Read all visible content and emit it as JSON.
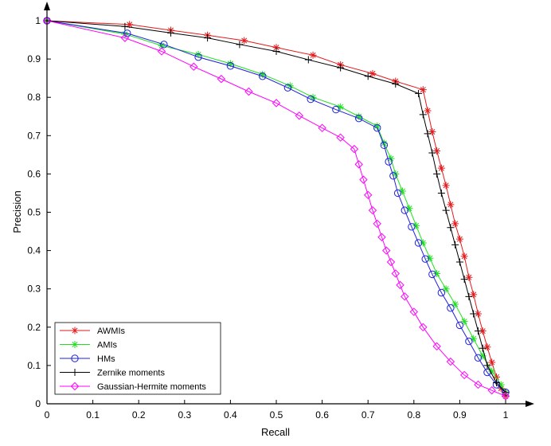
{
  "chart_data": {
    "type": "line",
    "title": "",
    "xlabel": "Recall",
    "ylabel": "Precision",
    "xlim": [
      0,
      1
    ],
    "ylim": [
      0,
      1
    ],
    "grid": false,
    "legend_position": "bottom-left",
    "xticks": [
      "0",
      "0.1",
      "0.2",
      "0.3",
      "0.4",
      "0.5",
      "0.6",
      "0.7",
      "0.8",
      "0.9",
      "1"
    ],
    "yticks": [
      "0",
      "0.1",
      "0.2",
      "0.3",
      "0.4",
      "0.5",
      "0.6",
      "0.7",
      "0.8",
      "0.9",
      "1"
    ],
    "series": [
      {
        "name": "AWMIs",
        "color": "#e31a1c",
        "marker": "asterisk",
        "x": [
          0,
          0.18,
          0.27,
          0.35,
          0.43,
          0.5,
          0.58,
          0.64,
          0.71,
          0.76,
          0.82,
          0.83,
          0.84,
          0.85,
          0.86,
          0.87,
          0.88,
          0.89,
          0.9,
          0.91,
          0.92,
          0.93,
          0.94,
          0.95,
          0.96,
          0.97,
          0.98,
          0.99,
          1.0
        ],
        "y": [
          1.0,
          0.99,
          0.975,
          0.962,
          0.948,
          0.93,
          0.91,
          0.885,
          0.862,
          0.842,
          0.82,
          0.765,
          0.71,
          0.66,
          0.615,
          0.57,
          0.52,
          0.47,
          0.43,
          0.385,
          0.33,
          0.285,
          0.235,
          0.19,
          0.148,
          0.108,
          0.07,
          0.04,
          0.02
        ]
      },
      {
        "name": "AMIs",
        "color": "#1fe01f",
        "marker": "asterisk",
        "x": [
          0,
          0.17,
          0.25,
          0.33,
          0.4,
          0.47,
          0.53,
          0.58,
          0.64,
          0.68,
          0.72,
          0.735,
          0.75,
          0.76,
          0.775,
          0.79,
          0.805,
          0.82,
          0.835,
          0.85,
          0.87,
          0.89,
          0.91,
          0.93,
          0.95,
          0.97,
          0.99,
          1.0
        ],
        "y": [
          1.0,
          0.965,
          0.935,
          0.912,
          0.888,
          0.86,
          0.83,
          0.8,
          0.775,
          0.75,
          0.725,
          0.68,
          0.64,
          0.6,
          0.555,
          0.51,
          0.465,
          0.42,
          0.38,
          0.34,
          0.3,
          0.26,
          0.215,
          0.17,
          0.125,
          0.085,
          0.05,
          0.03
        ]
      },
      {
        "name": "HMs",
        "color": "#1f1fe0",
        "marker": "circle",
        "x": [
          0,
          0.175,
          0.255,
          0.33,
          0.4,
          0.47,
          0.525,
          0.575,
          0.63,
          0.68,
          0.72,
          0.735,
          0.745,
          0.755,
          0.765,
          0.78,
          0.795,
          0.81,
          0.825,
          0.84,
          0.86,
          0.88,
          0.9,
          0.92,
          0.94,
          0.96,
          0.98,
          1.0
        ],
        "y": [
          1.0,
          0.967,
          0.938,
          0.905,
          0.882,
          0.855,
          0.825,
          0.795,
          0.768,
          0.745,
          0.72,
          0.675,
          0.632,
          0.595,
          0.55,
          0.505,
          0.462,
          0.42,
          0.378,
          0.338,
          0.29,
          0.25,
          0.205,
          0.163,
          0.12,
          0.082,
          0.05,
          0.03
        ]
      },
      {
        "name": "Zernike moments",
        "color": "#000000",
        "marker": "plus",
        "x": [
          0,
          0.17,
          0.27,
          0.35,
          0.42,
          0.5,
          0.57,
          0.64,
          0.7,
          0.76,
          0.81,
          0.82,
          0.83,
          0.84,
          0.85,
          0.86,
          0.87,
          0.88,
          0.89,
          0.9,
          0.91,
          0.92,
          0.93,
          0.94,
          0.95,
          0.96,
          0.98,
          1.0
        ],
        "y": [
          1.0,
          0.985,
          0.968,
          0.955,
          0.938,
          0.92,
          0.898,
          0.877,
          0.855,
          0.835,
          0.81,
          0.755,
          0.705,
          0.655,
          0.6,
          0.55,
          0.505,
          0.46,
          0.415,
          0.37,
          0.325,
          0.28,
          0.235,
          0.19,
          0.145,
          0.1,
          0.055,
          0.03
        ]
      },
      {
        "name": "Gaussian-Hermite moments",
        "color": "#ff00ff",
        "marker": "diamond",
        "x": [
          0,
          0.17,
          0.25,
          0.32,
          0.38,
          0.44,
          0.5,
          0.55,
          0.6,
          0.64,
          0.67,
          0.68,
          0.69,
          0.7,
          0.71,
          0.72,
          0.73,
          0.74,
          0.75,
          0.76,
          0.77,
          0.78,
          0.8,
          0.82,
          0.85,
          0.88,
          0.91,
          0.94,
          0.97,
          1.0
        ],
        "y": [
          1.0,
          0.955,
          0.92,
          0.88,
          0.848,
          0.815,
          0.785,
          0.752,
          0.72,
          0.695,
          0.665,
          0.625,
          0.585,
          0.545,
          0.505,
          0.47,
          0.435,
          0.4,
          0.37,
          0.34,
          0.31,
          0.28,
          0.24,
          0.2,
          0.15,
          0.11,
          0.075,
          0.05,
          0.035,
          0.02
        ]
      }
    ]
  }
}
